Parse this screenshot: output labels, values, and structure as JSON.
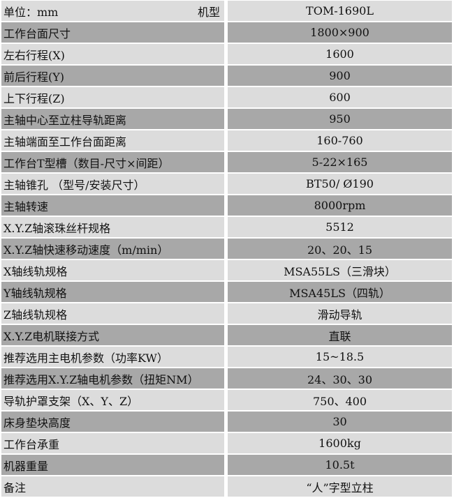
{
  "header": {
    "unit": "单位：mm",
    "model_label": "机型",
    "model": "TOM-1690L"
  },
  "colors": {
    "light_row": "#dcdcdc",
    "dark_row": "#a8a8a8"
  },
  "rows": [
    {
      "label": "工作台面尺寸",
      "value": "1800×900"
    },
    {
      "label": "左右行程(X)",
      "value": "1600"
    },
    {
      "label": "前后行程(Y)",
      "value": "900"
    },
    {
      "label": "上下行程(Z)",
      "value": "600"
    },
    {
      "label": "主轴中心至立柱导轨距离",
      "value": "950"
    },
    {
      "label": "主轴端面至工作台面距离",
      "value": "160-760"
    },
    {
      "label": "工作台T型槽（数目-尺寸×间距）",
      "value": "5-22×165"
    },
    {
      "label": "主轴锥孔 （型号/安装尺寸）",
      "value": "BT50/ Ø190"
    },
    {
      "label": "主轴转速",
      "value": "8000rpm"
    },
    {
      "label": "X.Y.Z轴滚珠丝杆规格",
      "value": "5512"
    },
    {
      "label": "X.Y.Z轴快速移动速度（m/min）",
      "value": "20、20、15"
    },
    {
      "label": "X轴线轨规格",
      "value": "MSA55LS（三滑块）"
    },
    {
      "label": "Y轴线轨规格",
      "value": "MSA45LS（四轨）"
    },
    {
      "label": "Z轴线轨规格",
      "value": "滑动导轨"
    },
    {
      "label": "X.Y.Z电机联接方式",
      "value": "直联"
    },
    {
      "label": "推荐选用主电机参数（功率KW）",
      "value": "15~18.5"
    },
    {
      "label": "推荐选用X.Y.Z轴电机参数（扭矩NM）",
      "value": "24、30、30"
    },
    {
      "label": "导轨护罩支架（X、Y、Z）",
      "value": "750、400"
    },
    {
      "label": "床身垫块高度",
      "value": "30"
    },
    {
      "label": "工作台承重",
      "value": "1600kg"
    },
    {
      "label": "机器重量",
      "value": "10.5t"
    },
    {
      "label": "备注",
      "value": "“人”字型立柱"
    }
  ]
}
